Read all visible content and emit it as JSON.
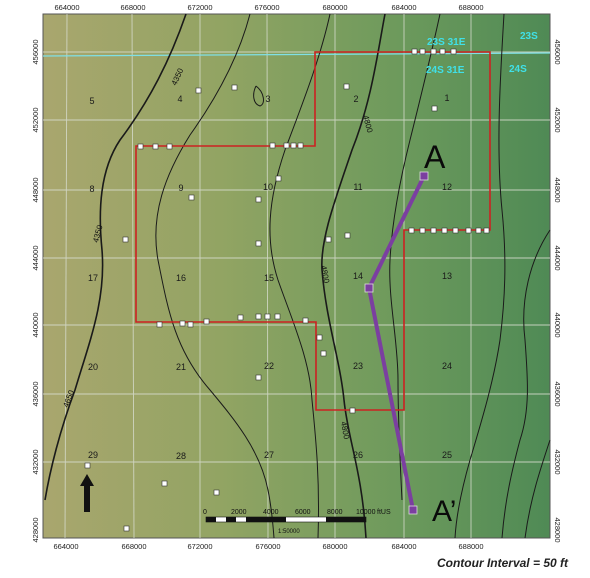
{
  "x_ticks": [
    "664000",
    "668000",
    "672000",
    "676000",
    "680000",
    "684000",
    "688000"
  ],
  "y_ticks": [
    "456000",
    "452000",
    "448000",
    "444000",
    "440000",
    "436000",
    "432000",
    "428000"
  ],
  "sections": [
    "5",
    "4",
    "3",
    "2",
    "1",
    "8",
    "9",
    "10",
    "11",
    "12",
    "17",
    "16",
    "15",
    "14",
    "13",
    "20",
    "21",
    "22",
    "23",
    "24",
    "29",
    "28",
    "27",
    "26",
    "25"
  ],
  "township_labels": [
    "23S 31E",
    "24S 31E",
    "23S",
    "24S"
  ],
  "contour_labels": [
    "4350",
    "4800",
    "4350",
    "4800",
    "4800",
    "4650"
  ],
  "cross_section": {
    "start_label": "A",
    "end_label": "A’",
    "color": "#7b3fa0"
  },
  "boundary_color": "#cc2222",
  "scale_bar": {
    "ticks": [
      "0",
      "2000",
      "4000",
      "6000",
      "8000",
      "10000"
    ],
    "unit": "ftUS",
    "ratio": "1:50000"
  },
  "caption": "Contour Interval = 50 ft"
}
